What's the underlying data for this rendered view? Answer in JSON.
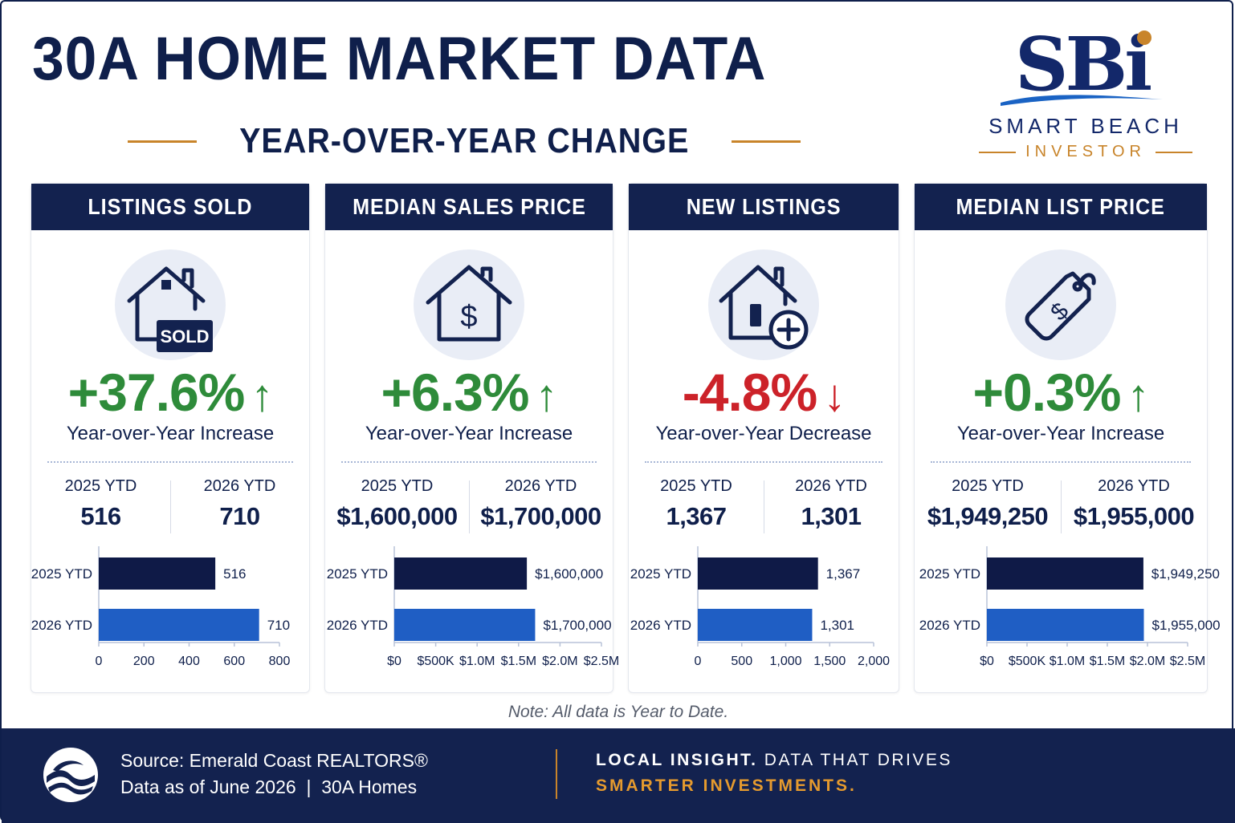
{
  "header": {
    "title": "30A HOME MARKET DATA",
    "subtitle": "YEAR-OVER-YEAR CHANGE"
  },
  "logo": {
    "mark": "SBi",
    "name": "SMART BEACH",
    "sub": "INVESTOR"
  },
  "colors": {
    "navy": "#13224f",
    "gold": "#c8842a",
    "increase": "#2e8b3a",
    "decrease": "#cc2229",
    "bar_2025": "#0f1a47",
    "bar_2026": "#1f5ec4"
  },
  "cards": [
    {
      "title": "LISTINGS SOLD",
      "icon": "house-sold-icon",
      "icon_text": "SOLD",
      "change": "+37.6%",
      "direction": "up",
      "arrow": "↑",
      "change_label": "Year-over-Year Increase",
      "ytd_2025_label": "2025 YTD",
      "ytd_2025_value": "516",
      "ytd_2026_label": "2026 YTD",
      "ytd_2026_value": "710"
    },
    {
      "title": "MEDIAN SALES PRICE",
      "icon": "house-dollar-icon",
      "change": "+6.3%",
      "direction": "up",
      "arrow": "↑",
      "change_label": "Year-over-Year Increase",
      "ytd_2025_label": "2025 YTD",
      "ytd_2025_value": "$1,600,000",
      "ytd_2026_label": "2026 YTD",
      "ytd_2026_value": "$1,700,000"
    },
    {
      "title": "NEW LISTINGS",
      "icon": "house-plus-icon",
      "change": "-4.8%",
      "direction": "down",
      "arrow": "↓",
      "change_label": "Year-over-Year Decrease",
      "ytd_2025_label": "2025 YTD",
      "ytd_2025_value": "1,367",
      "ytd_2026_label": "2026 YTD",
      "ytd_2026_value": "1,301"
    },
    {
      "title": "MEDIAN LIST PRICE",
      "icon": "price-tag-icon",
      "change": "+0.3%",
      "direction": "up",
      "arrow": "↑",
      "change_label": "Year-over-Year Increase",
      "ytd_2025_label": "2025 YTD",
      "ytd_2025_value": "$1,949,250",
      "ytd_2026_label": "2026 YTD",
      "ytd_2026_value": "$1,955,000"
    }
  ],
  "chart_data": [
    {
      "type": "bar",
      "orientation": "horizontal",
      "categories": [
        "2025 YTD",
        "2026 YTD"
      ],
      "values": [
        516,
        710
      ],
      "value_labels": [
        "516",
        "710"
      ],
      "xlim": [
        0,
        800
      ],
      "ticks": [
        0,
        200,
        400,
        600,
        800
      ],
      "tick_labels": [
        "0",
        "200",
        "400",
        "600",
        "800"
      ]
    },
    {
      "type": "bar",
      "orientation": "horizontal",
      "categories": [
        "2025 YTD",
        "2026 YTD"
      ],
      "values": [
        1600000,
        1700000
      ],
      "value_labels": [
        "$1,600,000",
        "$1,700,000"
      ],
      "xlim": [
        0,
        2500000
      ],
      "ticks": [
        0,
        500000,
        1000000,
        1500000,
        2000000,
        2500000
      ],
      "tick_labels": [
        "$0",
        "$500K",
        "$1.0M",
        "$1.5M",
        "$2.0M",
        "$2.5M"
      ]
    },
    {
      "type": "bar",
      "orientation": "horizontal",
      "categories": [
        "2025 YTD",
        "2026 YTD"
      ],
      "values": [
        1367,
        1301
      ],
      "value_labels": [
        "1,367",
        "1,301"
      ],
      "xlim": [
        0,
        2000
      ],
      "ticks": [
        0,
        500,
        1000,
        1500,
        2000
      ],
      "tick_labels": [
        "0",
        "500",
        "1,000",
        "1,500",
        "2,000"
      ]
    },
    {
      "type": "bar",
      "orientation": "horizontal",
      "categories": [
        "2025 YTD",
        "2026 YTD"
      ],
      "values": [
        1949250,
        1955000
      ],
      "value_labels": [
        "$1,949,250",
        "$1,955,000"
      ],
      "xlim": [
        0,
        2500000
      ],
      "ticks": [
        0,
        500000,
        1000000,
        1500000,
        2000000,
        2500000
      ],
      "tick_labels": [
        "$0",
        "$500K",
        "$1.0M",
        "$1.5M",
        "$2.0M",
        "$2.5M"
      ]
    }
  ],
  "note": "Note: All data is Year to Date.",
  "footer": {
    "source": "Source: Emerald Coast REALTORS®",
    "date": "Data as of June 2026  |  30A Homes",
    "tagline_bold": "LOCAL INSIGHT.",
    "tagline_rest": "DATA THAT DRIVES",
    "tagline_accent": "SMARTER INVESTMENTS."
  }
}
